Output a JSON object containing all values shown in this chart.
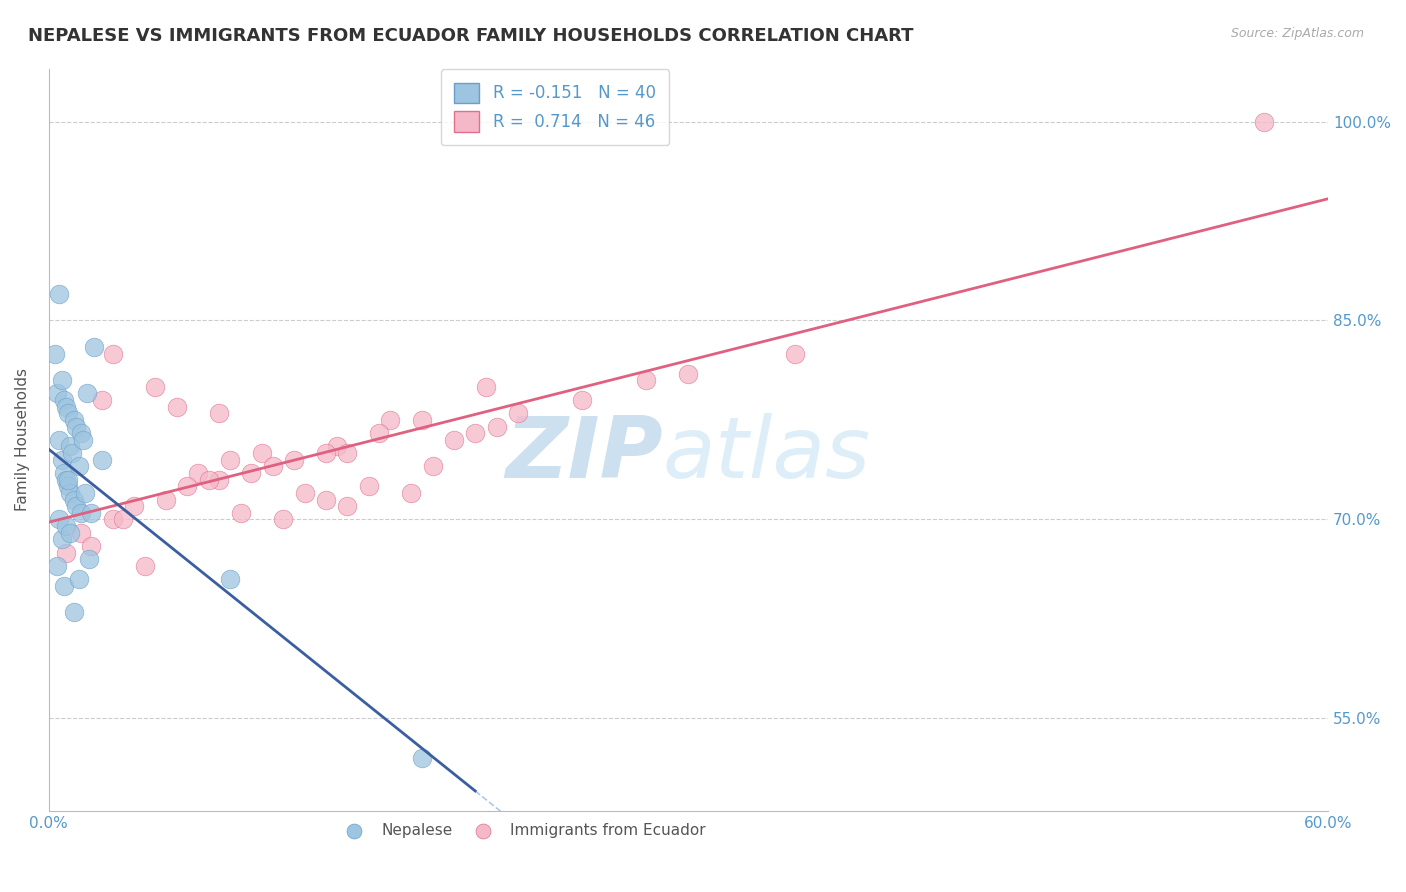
{
  "title": "NEPALESE VS IMMIGRANTS FROM ECUADOR FAMILY HOUSEHOLDS CORRELATION CHART",
  "source": "Source: ZipAtlas.com",
  "ylabel": "Family Households",
  "y_ticks": [
    55.0,
    70.0,
    85.0,
    100.0
  ],
  "xlim": [
    0.0,
    60.0
  ],
  "ylim": [
    48.0,
    104.0
  ],
  "nepalese_x": [
    0.3,
    0.4,
    0.5,
    0.5,
    0.6,
    0.6,
    0.7,
    0.7,
    0.8,
    0.8,
    0.9,
    0.9,
    1.0,
    1.0,
    1.1,
    1.2,
    1.2,
    1.3,
    1.3,
    1.4,
    1.5,
    1.5,
    1.6,
    1.7,
    1.8,
    1.9,
    2.0,
    2.1,
    2.5,
    0.4,
    0.5,
    0.6,
    0.7,
    0.8,
    0.9,
    1.0,
    1.2,
    1.4,
    8.5,
    17.5
  ],
  "nepalese_y": [
    82.5,
    79.5,
    87.0,
    76.0,
    80.5,
    74.5,
    79.0,
    73.5,
    78.5,
    73.0,
    78.0,
    72.5,
    75.5,
    72.0,
    75.0,
    77.5,
    71.5,
    77.0,
    71.0,
    74.0,
    76.5,
    70.5,
    76.0,
    72.0,
    79.5,
    67.0,
    70.5,
    83.0,
    74.5,
    66.5,
    70.0,
    68.5,
    65.0,
    69.5,
    73.0,
    69.0,
    63.0,
    65.5,
    65.5,
    52.0
  ],
  "ecuador_x": [
    0.8,
    1.5,
    2.0,
    2.5,
    3.0,
    4.0,
    4.5,
    5.5,
    6.0,
    7.0,
    8.0,
    9.0,
    10.0,
    11.0,
    12.0,
    13.0,
    14.0,
    15.0,
    16.0,
    17.0,
    18.0,
    19.0,
    20.0,
    21.0,
    3.5,
    5.0,
    6.5,
    7.5,
    8.5,
    9.5,
    10.5,
    11.5,
    13.5,
    14.0,
    15.5,
    17.5,
    20.5,
    22.0,
    25.0,
    28.0,
    30.0,
    35.0,
    3.0,
    8.0,
    13.0,
    57.0
  ],
  "ecuador_y": [
    67.5,
    69.0,
    68.0,
    79.0,
    70.0,
    71.0,
    66.5,
    71.5,
    78.5,
    73.5,
    73.0,
    70.5,
    75.0,
    70.0,
    72.0,
    71.5,
    71.0,
    72.5,
    77.5,
    72.0,
    74.0,
    76.0,
    76.5,
    77.0,
    70.0,
    80.0,
    72.5,
    73.0,
    74.5,
    73.5,
    74.0,
    74.5,
    75.5,
    75.0,
    76.5,
    77.5,
    80.0,
    78.0,
    79.0,
    80.5,
    81.0,
    82.5,
    82.5,
    78.0,
    75.0,
    100.0
  ],
  "blue_dot_color": "#9dc4e0",
  "blue_dot_edge": "#6a9fc8",
  "pink_dot_color": "#f5b8c8",
  "pink_dot_edge": "#e07090",
  "trend_blue_color": "#3a5fa0",
  "trend_pink_color": "#e06080",
  "dash_color": "#b0c8e0",
  "background_color": "#ffffff",
  "grid_color": "#cccccc",
  "watermark_zip": "ZIP",
  "watermark_atlas": "atlas",
  "watermark_color": "#cce0f0",
  "title_fontsize": 13,
  "axis_label_fontsize": 11,
  "tick_fontsize": 11,
  "tick_color": "#5599cc",
  "legend_fontsize": 12,
  "source_fontsize": 9
}
